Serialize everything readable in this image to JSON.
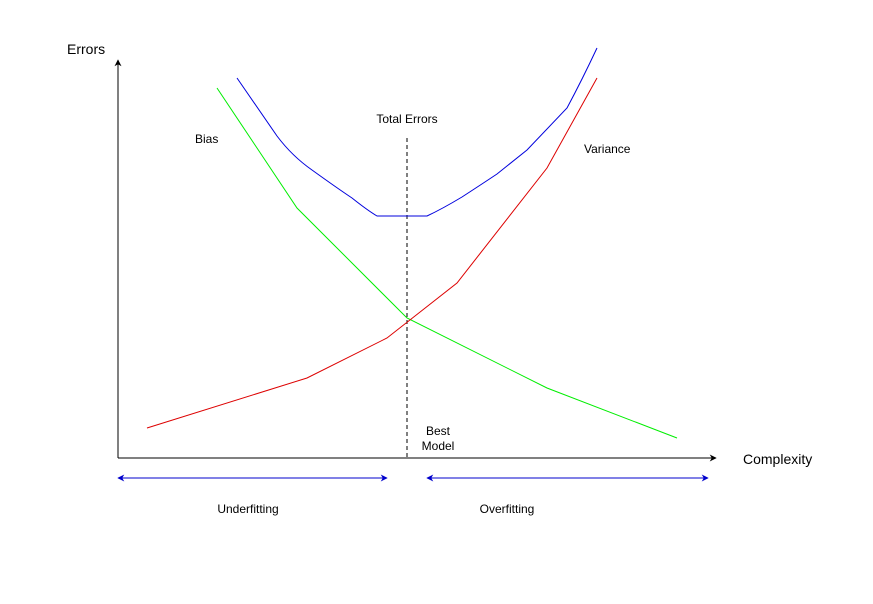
{
  "axes": {
    "y_label": "Errors",
    "x_label": "Complexity"
  },
  "curves": {
    "bias": {
      "label": "Bias",
      "color": "#00ee00"
    },
    "variance": {
      "label": "Variance",
      "color": "#dd0000"
    },
    "total": {
      "label": "Total Errors",
      "color": "#0000dd"
    }
  },
  "best_model": {
    "line1": "Best",
    "line2": "Model"
  },
  "regions": {
    "underfitting": {
      "label": "Underfitting",
      "color": "#0000cc"
    },
    "overfitting": {
      "label": "Overfitting",
      "color": "#0000cc"
    }
  }
}
